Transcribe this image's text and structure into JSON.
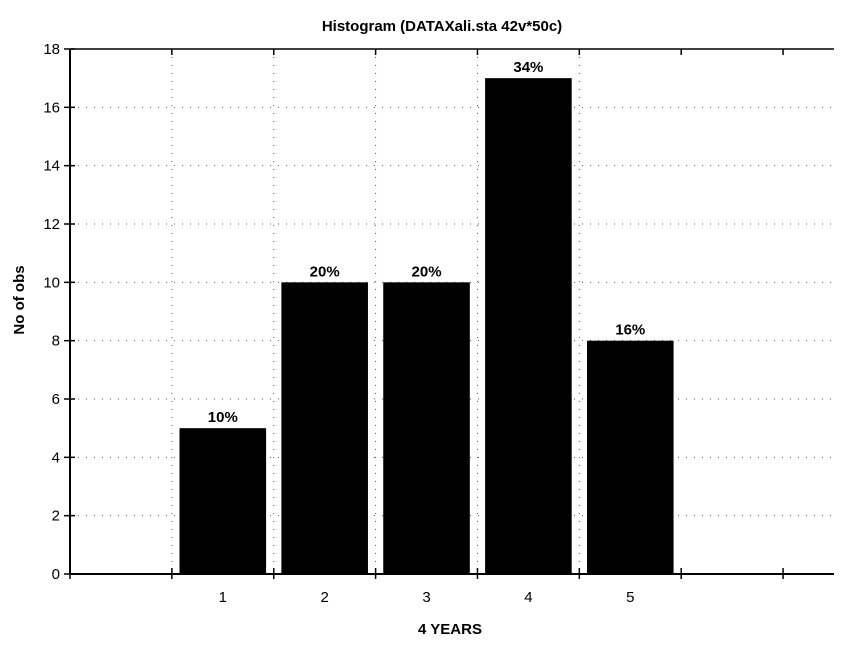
{
  "chart_data": {
    "type": "bar",
    "title": "Histogram (DATAXali.sta 42v*50c)",
    "xlabel": "4 YEARS",
    "ylabel": "No of obs",
    "categories": [
      "1",
      "2",
      "3",
      "4",
      "5"
    ],
    "values": [
      5,
      10,
      10,
      17,
      8
    ],
    "data_labels": [
      "10%",
      "20%",
      "20%",
      "34%",
      "16%"
    ],
    "ylim": [
      0,
      18
    ],
    "yticks": [
      0,
      2,
      4,
      6,
      8,
      10,
      12,
      14,
      16,
      18
    ],
    "xlim": [
      -0.5,
      7
    ],
    "grid": "dotted",
    "bar_color": "#000000"
  }
}
